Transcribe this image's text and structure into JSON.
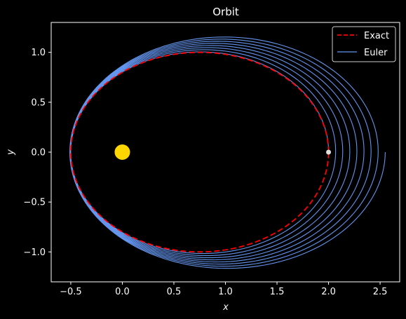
{
  "chart_data": {
    "type": "line",
    "title": "Orbit",
    "xlabel": "x",
    "ylabel": "y",
    "xlim": [
      -0.69,
      2.69
    ],
    "ylim": [
      -1.3,
      1.3
    ],
    "x_ticks": [
      -0.5,
      0.0,
      0.5,
      1.0,
      1.5,
      2.0,
      2.5
    ],
    "y_ticks": [
      -1.0,
      -0.5,
      0.0,
      0.5,
      1.0
    ],
    "x_tick_labels": [
      "−0.5",
      "0.0",
      "0.5",
      "1.0",
      "1.5",
      "2.0",
      "2.5"
    ],
    "y_tick_labels": [
      "−1.0",
      "−0.5",
      "0.0",
      "0.5",
      "1.0"
    ],
    "legend_position": "top-right",
    "series": [
      {
        "name": "Exact",
        "style": "dashed",
        "color": "#ff0000",
        "orbit": {
          "center_x": 0.75,
          "center_y": 0.0,
          "semi_major": 1.25,
          "semi_minor": 1.0
        },
        "orbits": 1
      },
      {
        "name": "Euler",
        "style": "solid",
        "color": "#6495ed",
        "orbit_start": {
          "center_x": 0.75,
          "semi_major": 1.25,
          "semi_minor": 1.0
        },
        "orbit_end": {
          "center_x": 1.02,
          "semi_major": 1.53,
          "semi_minor": 1.17
        },
        "orbits": 8
      }
    ],
    "markers": [
      {
        "name": "sun",
        "x": 0.0,
        "y": 0.0,
        "color": "#ffd700"
      },
      {
        "name": "start",
        "x": 2.0,
        "y": 0.0,
        "color": "#dddddd"
      }
    ]
  }
}
